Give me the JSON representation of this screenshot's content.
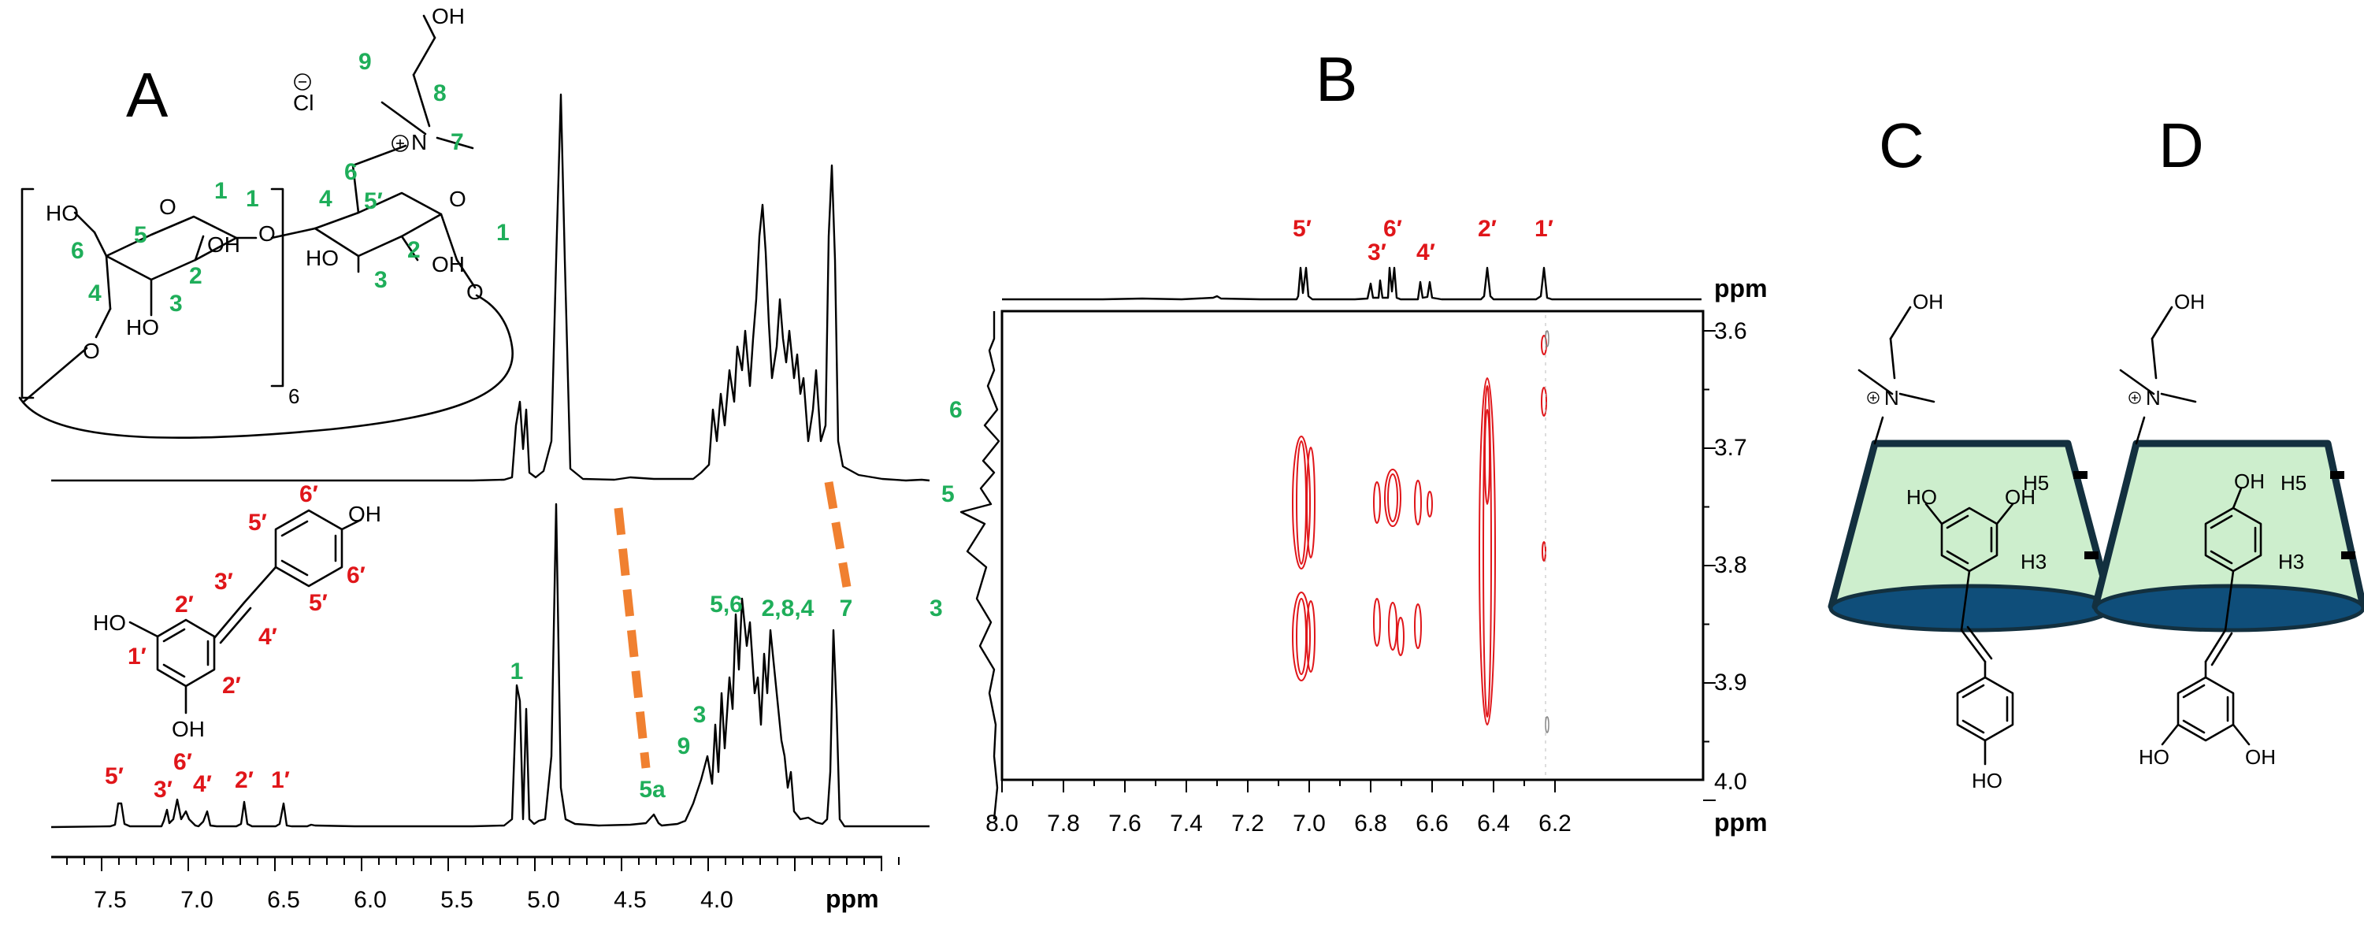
{
  "panels": {
    "a": "A",
    "b": "B",
    "c": "C",
    "d": "D"
  },
  "panel_a": {
    "axis_unit": "ppm",
    "x_ticks": [
      "7.5",
      "7.0",
      "6.5",
      "6.0",
      "5.5",
      "5.0",
      "4.5",
      "4.0"
    ],
    "ring_repeat": "6",
    "counter_ion": "Cl",
    "cd_atoms": [
      "HO",
      "O",
      "OH",
      "HO",
      "O",
      "N",
      "OH",
      "HO",
      "OH",
      "O",
      "O"
    ],
    "cd_labels": [
      "1",
      "2",
      "3",
      "4",
      "5",
      "6",
      "1",
      "2",
      "3",
      "4",
      "5′",
      "6",
      "7",
      "8",
      "9",
      "1"
    ],
    "res_atoms": [
      "HO",
      "OH",
      "OH"
    ],
    "res_labels": [
      "6′",
      "5′",
      "6′",
      "5′",
      "3′",
      "4′",
      "2′",
      "1′",
      "2′"
    ],
    "peaks_red": [
      "5′",
      "3′",
      "6′",
      "4′",
      "2′",
      "1′"
    ],
    "peaks_green": [
      "1",
      "5a",
      "9",
      "3",
      "5,6",
      "2,8,4",
      "7"
    ]
  },
  "panel_b": {
    "axis_unit_x": "ppm",
    "axis_unit_y": "ppm",
    "x_ticks": [
      "8.0",
      "7.8",
      "7.6",
      "7.4",
      "7.2",
      "7.0",
      "6.8",
      "6.6",
      "6.4",
      "6.2"
    ],
    "y_ticks": [
      "3.6",
      "3.7",
      "3.8",
      "3.9",
      "4.0"
    ],
    "top_labels": [
      "5′",
      "3′",
      "6′",
      "4′",
      "2′",
      "1′"
    ],
    "side_labels": [
      "6",
      "5",
      "3"
    ]
  },
  "panel_cd": {
    "atom_oh": "OH",
    "atom_n": "N",
    "h5": "H5",
    "h3": "H3",
    "atom_ho": "HO"
  },
  "colors": {
    "green_label": "#1fae5a",
    "red_label": "#e0161a",
    "cone_fill": "#cdeecd",
    "cone_stroke": "#13303f",
    "cone_base": "#0f4e7a",
    "dash": "#f08030"
  }
}
